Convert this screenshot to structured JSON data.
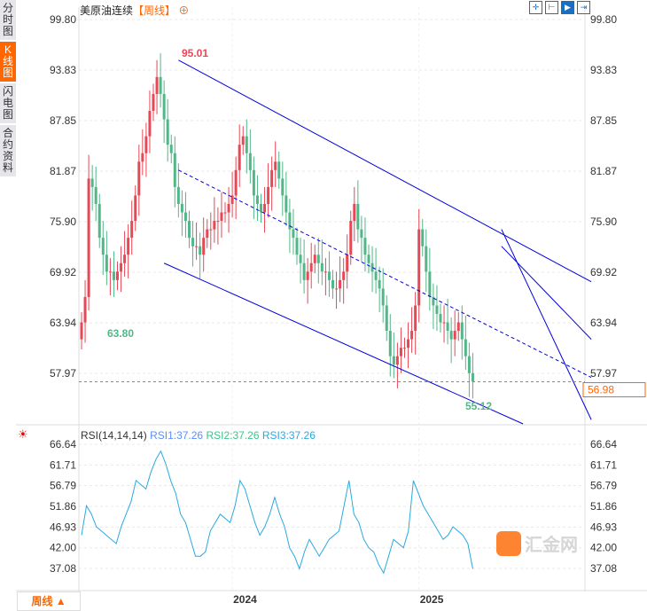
{
  "sidebar": {
    "items": [
      {
        "label": "分时图"
      },
      {
        "label": "K线图",
        "active": true
      },
      {
        "label": "闪电图"
      },
      {
        "label": "合约资料"
      }
    ]
  },
  "header": {
    "title": "美原油连续",
    "period": "【周线】",
    "zoom_icon": "plus-circle-icon",
    "tools": [
      "crosshair-icon",
      "fit-icon",
      "scroll-right-icon",
      "exit-icon"
    ]
  },
  "footer": {
    "period_button": "周线 ▲"
  },
  "watermark": {
    "text": "汇金网",
    "url": "www.gold678.com"
  },
  "colors": {
    "up": "#e84855",
    "down": "#52b788",
    "trend": "#0000dd",
    "rsi": "#29a9e0",
    "last": "#f60"
  },
  "chart_data": [
    {
      "type": "candlestick",
      "title": "美原油连续",
      "yticks": [
        "99.80",
        "93.83",
        "87.85",
        "81.87",
        "75.90",
        "69.92",
        "63.94",
        "57.97"
      ],
      "ylim": [
        55.5,
        99.8
      ],
      "xticks": [
        {
          "label": "2024",
          "week": 42
        },
        {
          "label": "2025",
          "week": 94
        }
      ],
      "closes": [
        64,
        67,
        81,
        80,
        78,
        74,
        72,
        70,
        70,
        69,
        70,
        71,
        72,
        74,
        76,
        79,
        83,
        84,
        86,
        89,
        91,
        93,
        91,
        88,
        85,
        84,
        80,
        78,
        77,
        76,
        74,
        73,
        73,
        72,
        74,
        75,
        75,
        76,
        76,
        77,
        77,
        78,
        79,
        82,
        85,
        86,
        84,
        82,
        79,
        78,
        77,
        78,
        80,
        82,
        83,
        81,
        79,
        77,
        75,
        74,
        72,
        71,
        69,
        70,
        71,
        72,
        71,
        70,
        70,
        69,
        68,
        68,
        69,
        70,
        72,
        76,
        78,
        75,
        74,
        72,
        71,
        70,
        69,
        68,
        66,
        63,
        60,
        59,
        60,
        61,
        61,
        62,
        63,
        66,
        75,
        73,
        70,
        67,
        66,
        65,
        64,
        64,
        63,
        62,
        63,
        64,
        62,
        60,
        58,
        57
      ],
      "last": "56.98",
      "high_label": "95.01",
      "low_label": "63.80",
      "low2_label": "55.12",
      "trendlines": [
        {
          "from": [
            27,
            95
          ],
          "to": [
            142,
            68.8
          ],
          "style": "solid"
        },
        {
          "from": [
            27,
            82
          ],
          "to": [
            142,
            57.5
          ],
          "style": "dashed"
        },
        {
          "from": [
            23,
            71
          ],
          "to": [
            123,
            52
          ],
          "style": "solid"
        },
        {
          "from": [
            117,
            75
          ],
          "to": [
            142,
            52.5
          ],
          "style": "solid"
        },
        {
          "from": [
            117,
            73
          ],
          "to": [
            142,
            62
          ],
          "style": "solid"
        }
      ]
    },
    {
      "type": "line",
      "title": "RSI(14,14,14)",
      "legend": [
        "RSI1:37.26",
        "RSI2:37.26",
        "RSI3:37.26"
      ],
      "yticks": [
        "66.64",
        "61.71",
        "56.79",
        "51.86",
        "46.93",
        "42.00",
        "37.08"
      ],
      "ylim": [
        33,
        68
      ],
      "values": [
        45,
        52,
        50,
        47,
        46,
        45,
        44,
        43,
        47,
        50,
        53,
        58,
        57,
        56,
        60,
        63,
        65,
        62,
        58,
        55,
        50,
        48,
        44,
        40,
        40,
        41,
        46,
        48,
        50,
        49,
        48,
        52,
        58,
        56,
        52,
        48,
        45,
        47,
        50,
        54,
        50,
        47,
        42,
        40,
        37,
        41,
        44,
        42,
        40,
        42,
        44,
        45,
        46,
        52,
        58,
        50,
        48,
        44,
        42,
        41,
        38,
        36,
        40,
        44,
        43,
        42,
        46,
        58,
        55,
        52,
        50,
        48,
        46,
        44,
        45,
        47,
        46,
        45,
        43,
        37
      ]
    }
  ]
}
